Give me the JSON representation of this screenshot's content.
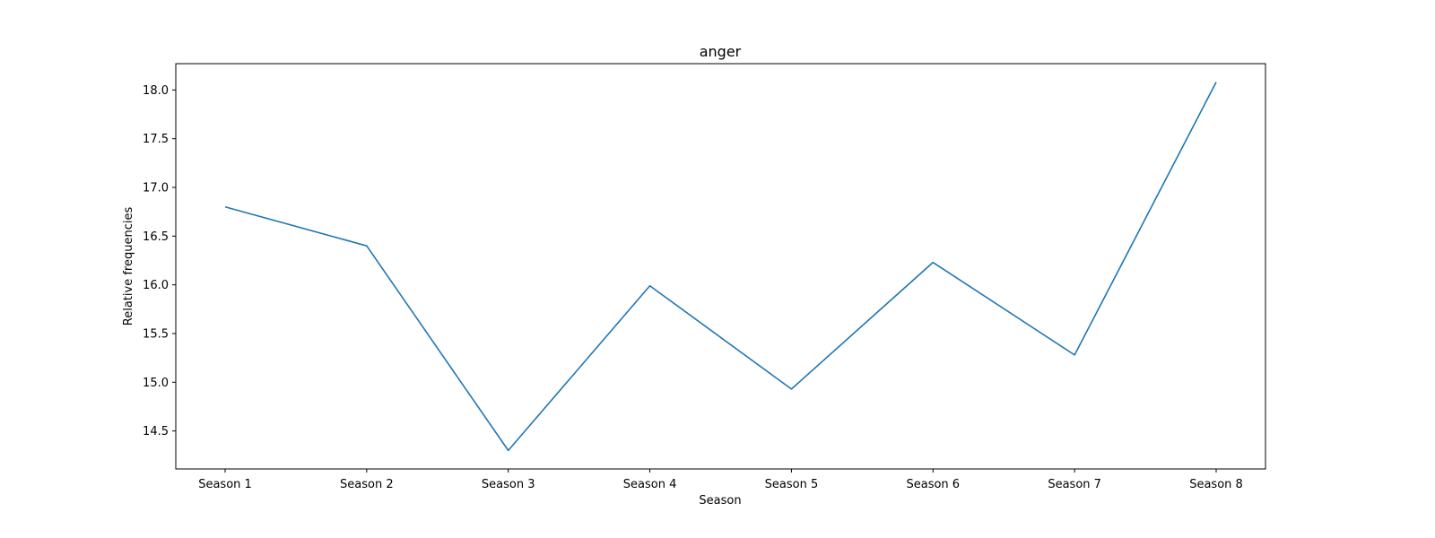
{
  "chart_data": {
    "type": "line",
    "title": "anger",
    "xlabel": "Season",
    "ylabel": "Relative frequencies",
    "categories": [
      "Season 1",
      "Season 2",
      "Season 3",
      "Season 4",
      "Season 5",
      "Season 6",
      "Season 7",
      "Season 8"
    ],
    "series": [
      {
        "values": [
          16.8,
          16.4,
          14.3,
          15.99,
          14.93,
          16.23,
          15.28,
          18.08
        ],
        "color": "#1f77b4"
      }
    ],
    "yticks": [
      "14.5",
      "15.0",
      "15.5",
      "16.0",
      "16.5",
      "17.0",
      "17.5",
      "18.0"
    ],
    "ylim": [
      14.11,
      18.27
    ],
    "grid": false,
    "legend": "none"
  }
}
